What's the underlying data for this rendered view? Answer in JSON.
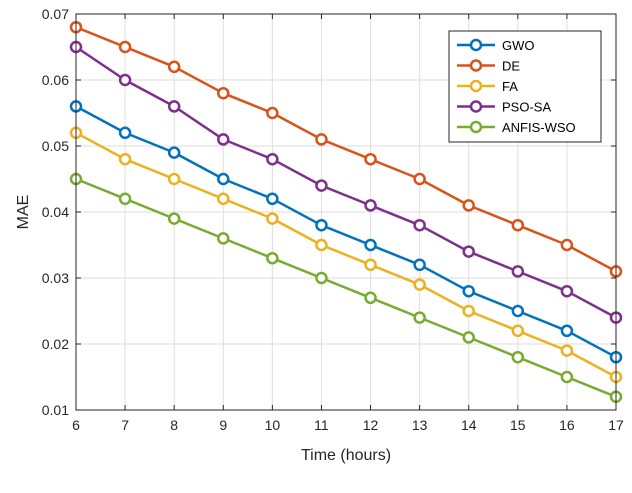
{
  "chart_data": {
    "type": "line",
    "title": "",
    "xlabel": "Time (hours)",
    "ylabel": "MAE",
    "xlim": [
      6,
      17
    ],
    "ylim": [
      0.01,
      0.07
    ],
    "grid": true,
    "legend_position": "top-right",
    "x": [
      6,
      7,
      8,
      9,
      10,
      11,
      12,
      13,
      14,
      15,
      16,
      17
    ],
    "x_ticks": [
      "6",
      "7",
      "8",
      "9",
      "10",
      "11",
      "12",
      "13",
      "14",
      "15",
      "16",
      "17"
    ],
    "y_ticks": [
      "0.01",
      "0.02",
      "0.03",
      "0.04",
      "0.05",
      "0.06",
      "0.07"
    ],
    "series": [
      {
        "name": "GWO",
        "color": "#0072BD",
        "values": [
          0.056,
          0.052,
          0.049,
          0.045,
          0.042,
          0.038,
          0.035,
          0.032,
          0.028,
          0.025,
          0.022,
          0.018
        ]
      },
      {
        "name": "DE",
        "color": "#D95319",
        "values": [
          0.068,
          0.065,
          0.062,
          0.058,
          0.055,
          0.051,
          0.048,
          0.045,
          0.041,
          0.038,
          0.035,
          0.031
        ]
      },
      {
        "name": "FA",
        "color": "#EDB120",
        "values": [
          0.052,
          0.048,
          0.045,
          0.042,
          0.039,
          0.035,
          0.032,
          0.029,
          0.025,
          0.022,
          0.019,
          0.015
        ]
      },
      {
        "name": "PSO-SA",
        "color": "#7E2F8E",
        "values": [
          0.065,
          0.06,
          0.056,
          0.051,
          0.048,
          0.044,
          0.041,
          0.038,
          0.034,
          0.031,
          0.028,
          0.024
        ]
      },
      {
        "name": "ANFIS-WSO",
        "color": "#77AC30",
        "values": [
          0.045,
          0.042,
          0.039,
          0.036,
          0.033,
          0.03,
          0.027,
          0.024,
          0.021,
          0.018,
          0.015,
          0.012
        ]
      }
    ]
  }
}
